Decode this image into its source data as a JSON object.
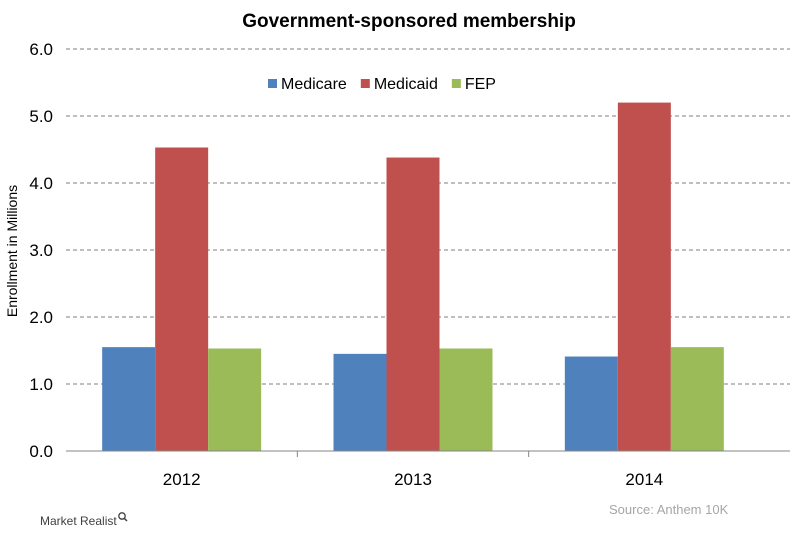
{
  "chart_data": {
    "type": "bar",
    "title": "Government-sponsored  membership",
    "ylabel": "Enrollment in Millions",
    "xlabel": "",
    "categories": [
      "2012",
      "2013",
      "2014"
    ],
    "series": [
      {
        "name": "Medicare",
        "color": "#4f81bd",
        "values": [
          1.55,
          1.45,
          1.41
        ]
      },
      {
        "name": "Medicaid",
        "color": "#c0504d",
        "values": [
          4.53,
          4.38,
          5.2
        ]
      },
      {
        "name": "FEP",
        "color": "#9bbb59",
        "values": [
          1.53,
          1.53,
          1.55
        ]
      }
    ],
    "ylim": [
      0,
      6
    ],
    "yticks": [
      "0.0",
      "1.0",
      "2.0",
      "3.0",
      "4.0",
      "5.0",
      "6.0"
    ],
    "grid": true,
    "legend_position": "top-center"
  },
  "source": "Source: Anthem 10K",
  "brand": {
    "name": "Market Realist",
    "icon": "magnifier-icon"
  }
}
